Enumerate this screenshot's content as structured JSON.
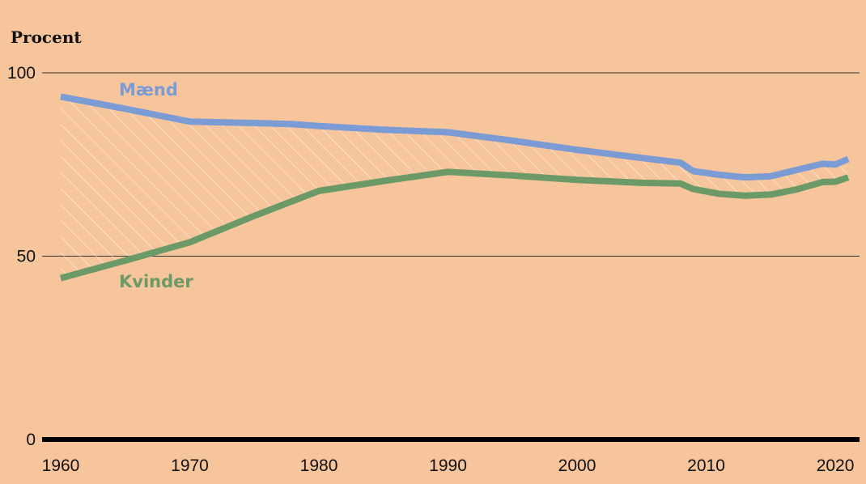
{
  "chart_data": {
    "type": "line",
    "ylabel": "Procent",
    "ylim": [
      0,
      100
    ],
    "xlim": [
      1960,
      2021
    ],
    "y_ticks": [
      100,
      50,
      0
    ],
    "x_ticks": [
      1960,
      1970,
      1980,
      1990,
      2000,
      2010,
      2020
    ],
    "grid": true,
    "gap_fill": "hatched",
    "series": [
      {
        "name": "Mænd",
        "color": "#7b9bd4",
        "points": [
          [
            1960,
            93.5
          ],
          [
            1965,
            90.2
          ],
          [
            1970,
            86.7
          ],
          [
            1975,
            86.3
          ],
          [
            1978,
            86.0
          ],
          [
            1980,
            85.5
          ],
          [
            1985,
            84.5
          ],
          [
            1990,
            83.8
          ],
          [
            1995,
            81.5
          ],
          [
            2000,
            79.0
          ],
          [
            2005,
            76.8
          ],
          [
            2008,
            75.5
          ],
          [
            2009,
            73.2
          ],
          [
            2011,
            72.2
          ],
          [
            2013,
            71.5
          ],
          [
            2015,
            71.8
          ],
          [
            2017,
            73.5
          ],
          [
            2019,
            75.2
          ],
          [
            2020,
            75.0
          ],
          [
            2021,
            76.5
          ]
        ]
      },
      {
        "name": "Kvinder",
        "color": "#6b9a68",
        "points": [
          [
            1960,
            44.0
          ],
          [
            1965,
            48.8
          ],
          [
            1970,
            53.8
          ],
          [
            1975,
            61.0
          ],
          [
            1980,
            67.8
          ],
          [
            1985,
            70.5
          ],
          [
            1990,
            73.0
          ],
          [
            1995,
            72.0
          ],
          [
            2000,
            70.8
          ],
          [
            2005,
            70.0
          ],
          [
            2008,
            69.8
          ],
          [
            2009,
            68.3
          ],
          [
            2011,
            67.0
          ],
          [
            2013,
            66.5
          ],
          [
            2015,
            66.8
          ],
          [
            2017,
            68.2
          ],
          [
            2019,
            70.2
          ],
          [
            2020,
            70.3
          ],
          [
            2021,
            71.5
          ]
        ]
      }
    ]
  }
}
